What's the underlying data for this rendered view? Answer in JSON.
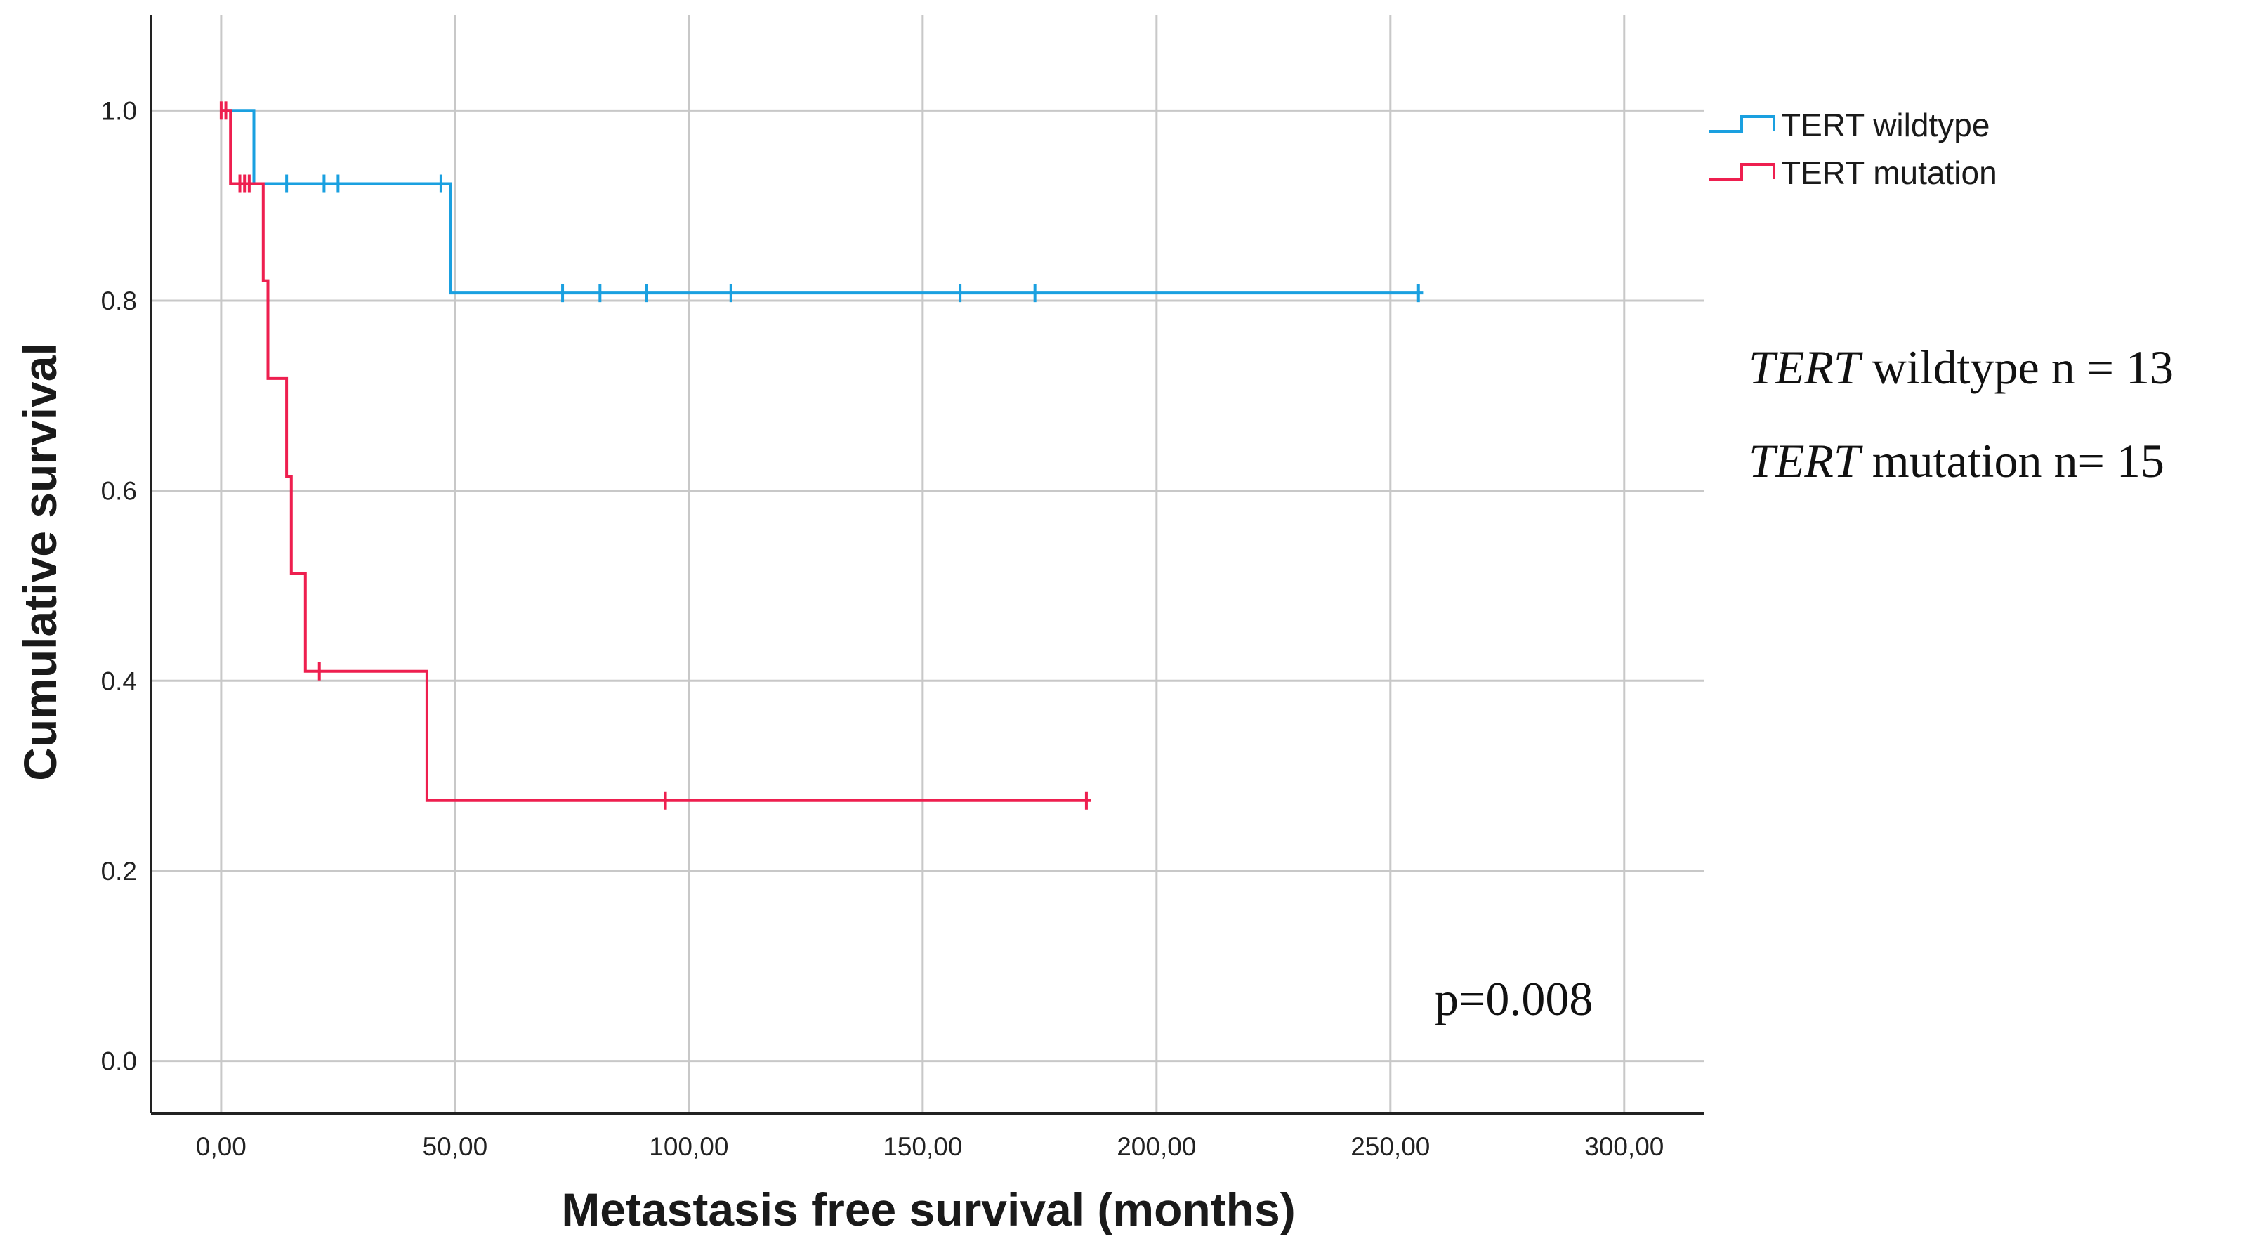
{
  "chart_data": {
    "type": "line",
    "subtype": "kaplan-meier",
    "xlabel": "Metastasis free survival (months)",
    "ylabel": "Cumulative survival",
    "xlim": [
      -15,
      317
    ],
    "ylim": [
      -0.055,
      1.1
    ],
    "x_ticks": [
      0,
      50,
      100,
      150,
      200,
      250,
      300
    ],
    "x_tick_labels": [
      "0,00",
      "50,00",
      "100,00",
      "150,00",
      "200,00",
      "250,00",
      "300,00"
    ],
    "y_ticks": [
      0.0,
      0.2,
      0.4,
      0.6,
      0.8,
      1.0
    ],
    "y_tick_labels": [
      "0.0",
      "0.2",
      "0.4",
      "0.6",
      "0.8",
      "1.0"
    ],
    "grid": true,
    "legend_position": "top-right, outside plot",
    "series": [
      {
        "name": "TERT wildtype",
        "color": "#1aa0e0",
        "steps": [
          [
            0,
            1.0
          ],
          [
            7,
            1.0
          ],
          [
            7,
            0.923
          ],
          [
            49,
            0.923
          ],
          [
            49,
            0.808
          ],
          [
            257,
            0.808
          ]
        ],
        "censored": [
          [
            14,
            0.923
          ],
          [
            22,
            0.923
          ],
          [
            25,
            0.923
          ],
          [
            47,
            0.923
          ],
          [
            73,
            0.808
          ],
          [
            81,
            0.808
          ],
          [
            91,
            0.808
          ],
          [
            109,
            0.808
          ],
          [
            158,
            0.808
          ],
          [
            174,
            0.808
          ],
          [
            256,
            0.808
          ]
        ]
      },
      {
        "name": "TERT mutation",
        "color": "#ee1f4f",
        "steps": [
          [
            0,
            1.0
          ],
          [
            2,
            1.0
          ],
          [
            2,
            0.923
          ],
          [
            9,
            0.923
          ],
          [
            9,
            0.821
          ],
          [
            10,
            0.821
          ],
          [
            10,
            0.718
          ],
          [
            14,
            0.718
          ],
          [
            14,
            0.615
          ],
          [
            15,
            0.615
          ],
          [
            15,
            0.513
          ],
          [
            18,
            0.513
          ],
          [
            18,
            0.41
          ],
          [
            44,
            0.41
          ],
          [
            44,
            0.274
          ],
          [
            186,
            0.274
          ]
        ],
        "censored": [
          [
            0,
            1.0
          ],
          [
            1,
            1.0
          ],
          [
            4,
            0.923
          ],
          [
            5,
            0.923
          ],
          [
            6,
            0.923
          ],
          [
            21,
            0.41
          ],
          [
            95,
            0.274
          ],
          [
            185,
            0.274
          ]
        ]
      }
    ],
    "annotations": {
      "p_value": "p=0.008",
      "n_lines": [
        {
          "italic": "TERT",
          "rest": " wildtype n = 13"
        },
        {
          "italic": "TERT",
          "rest": " mutation n= 15"
        }
      ]
    }
  }
}
